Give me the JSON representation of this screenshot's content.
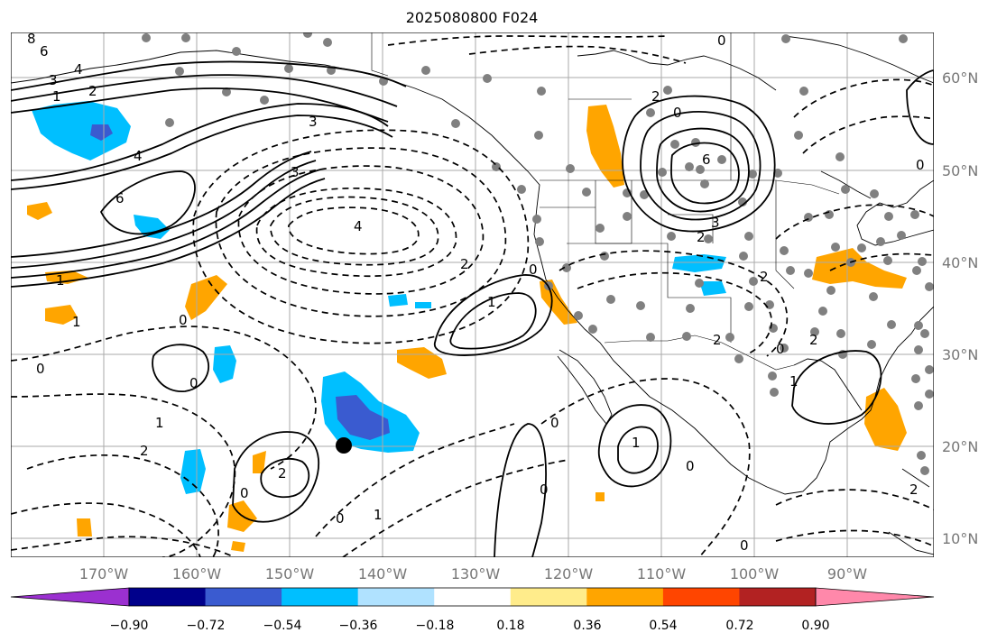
{
  "title": "2025080800 F024",
  "lat_labels": [
    "60°N",
    "50°N",
    "40°N",
    "30°N",
    "20°N",
    "10°N"
  ],
  "lon_labels": [
    "170°W",
    "160°W",
    "150°W",
    "140°W",
    "130°W",
    "120°W",
    "110°W",
    "100°W",
    "90°W"
  ],
  "colorbar": {
    "ticks": [
      "−0.90",
      "−0.72",
      "−0.54",
      "−0.36",
      "−0.18",
      "0.18",
      "0.36",
      "0.54",
      "0.72",
      "0.90"
    ],
    "colors": [
      "#9b30d0",
      "#00008b",
      "#3a5bd0",
      "#00bfff",
      "#b0e2ff",
      "#ffffff",
      "#ffec8b",
      "#ffa500",
      "#ff4500",
      "#b22222",
      "#ff88aa"
    ]
  },
  "map": {
    "ocean_color": "#ffffff",
    "grid_color": "#999999",
    "contour_labels": [
      "8",
      "6",
      "3",
      "4",
      "2",
      "1",
      "4",
      "6",
      "3",
      "3",
      "4",
      "2",
      "1",
      "0",
      "1",
      "0",
      "0",
      "1",
      "2",
      "2",
      "0",
      "0",
      "1",
      "0",
      "1",
      "0",
      "0",
      "2",
      "6",
      "3",
      "2",
      "0",
      "2",
      "2",
      "0",
      "2",
      "1",
      "1",
      "0",
      "0",
      "0",
      "0",
      "2"
    ]
  }
}
